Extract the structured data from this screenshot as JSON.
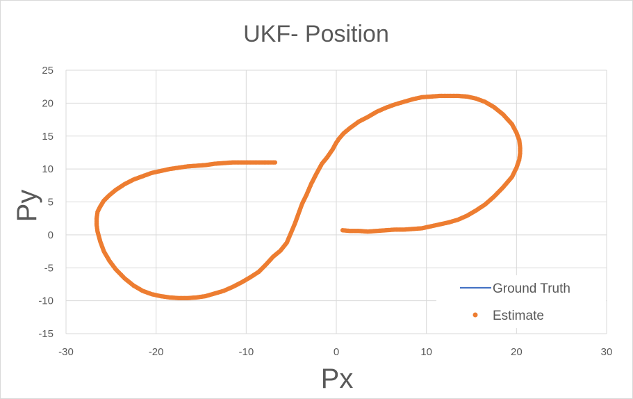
{
  "chart_data": {
    "type": "scatter",
    "title": "UKF- Position",
    "xlabel": "Px",
    "ylabel": "Py",
    "xlim": [
      -30,
      30
    ],
    "ylim": [
      -15,
      25
    ],
    "x_ticks": [
      "-30",
      "-20",
      "-10",
      "0",
      "10",
      "20",
      "30"
    ],
    "y_ticks": [
      "-15",
      "-10",
      "-5",
      "0",
      "5",
      "10",
      "15",
      "20",
      "25"
    ],
    "grid": true,
    "legend_position": "bottom-right",
    "colors": {
      "ground_truth": "#4472c4",
      "estimate": "#ed7d31",
      "grid": "#d9d9d9"
    },
    "series": [
      {
        "name": "Ground Truth",
        "type": "line",
        "values": []
      },
      {
        "name": "Estimate",
        "type": "scatter",
        "x": [
          0.7,
          1.5,
          2.5,
          3.5,
          4.5,
          5.5,
          6.5,
          7.5,
          8.5,
          9.5,
          10.5,
          11.5,
          12.5,
          13.5,
          14.5,
          15.5,
          16.5,
          17.5,
          18.5,
          19.5,
          20.0,
          20.3,
          20.4,
          20.4,
          20.3,
          20.0,
          19.5,
          18.5,
          17.5,
          16.5,
          15.5,
          14.5,
          13.5,
          12.5,
          11.5,
          10.5,
          9.5,
          8.5,
          7.5,
          6.5,
          5.5,
          4.5,
          3.5,
          2.5,
          1.5,
          0.8,
          0.3,
          0.0,
          -0.4,
          -1.0,
          -1.6,
          -2.2,
          -2.8,
          -3.3,
          -3.8,
          -4.2,
          -4.6,
          -5.0,
          -5.5,
          -6.2,
          -7.0,
          -7.8,
          -8.6,
          -9.5,
          -10.5,
          -11.5,
          -12.5,
          -13.5,
          -14.5,
          -15.5,
          -16.5,
          -17.5,
          -18.5,
          -19.5,
          -20.5,
          -21.5,
          -22.5,
          -23.5,
          -24.5,
          -25.2,
          -25.8,
          -26.2,
          -26.5,
          -26.6,
          -26.6,
          -26.5,
          -26.2,
          -25.8,
          -25.2,
          -24.5,
          -23.5,
          -22.5,
          -21.5,
          -20.5,
          -19.5,
          -18.5,
          -17.5,
          -16.5,
          -15.5,
          -14.5,
          -13.5,
          -12.5,
          -11.5,
          -10.5,
          -9.5,
          -8.5,
          -7.5,
          -6.8
        ],
        "y": [
          0.7,
          0.6,
          0.6,
          0.5,
          0.6,
          0.7,
          0.8,
          0.8,
          0.9,
          1.0,
          1.3,
          1.6,
          1.9,
          2.3,
          2.9,
          3.7,
          4.6,
          5.8,
          7.2,
          8.8,
          10.2,
          11.4,
          12.4,
          13.3,
          14.4,
          15.5,
          16.8,
          18.3,
          19.4,
          20.2,
          20.7,
          21.0,
          21.1,
          21.1,
          21.1,
          21.0,
          20.9,
          20.6,
          20.2,
          19.8,
          19.3,
          18.7,
          17.9,
          17.2,
          16.2,
          15.4,
          14.6,
          14.0,
          13.0,
          11.8,
          10.8,
          9.3,
          7.7,
          6.1,
          4.7,
          3.2,
          1.7,
          0.4,
          -1.2,
          -2.4,
          -3.3,
          -4.5,
          -5.6,
          -6.4,
          -7.2,
          -7.9,
          -8.5,
          -8.9,
          -9.3,
          -9.5,
          -9.6,
          -9.6,
          -9.5,
          -9.3,
          -9.0,
          -8.5,
          -7.7,
          -6.6,
          -5.2,
          -3.9,
          -2.5,
          -1.0,
          0.5,
          1.5,
          2.5,
          3.5,
          4.3,
          5.2,
          6.0,
          6.8,
          7.7,
          8.4,
          8.9,
          9.4,
          9.7,
          10.0,
          10.2,
          10.4,
          10.5,
          10.6,
          10.8,
          10.9,
          11.0,
          11.0,
          11.0,
          11.0,
          11.0,
          11.0
        ]
      }
    ]
  }
}
